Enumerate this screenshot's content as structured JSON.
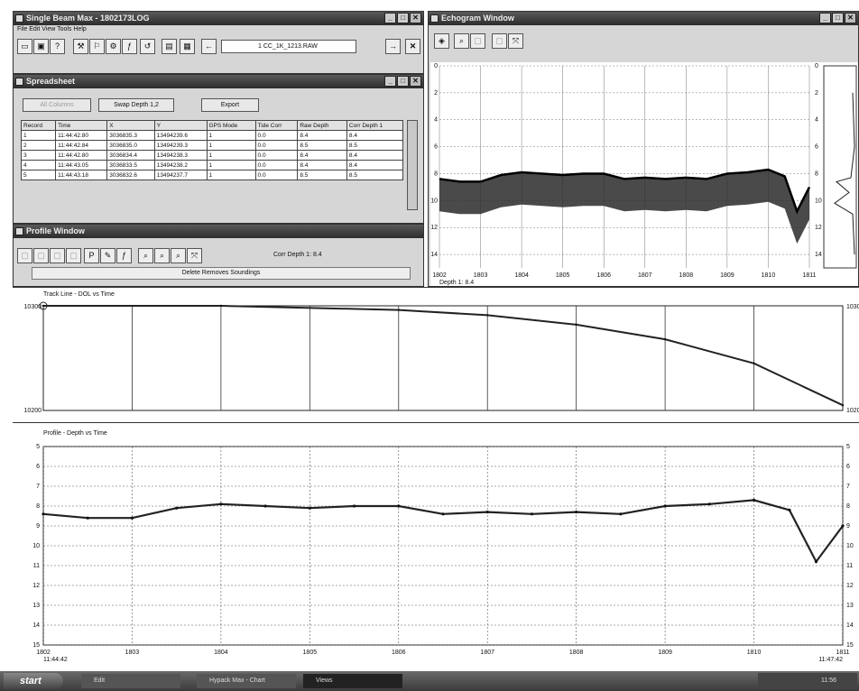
{
  "main_window": {
    "title": "Single Beam Max - 1802173LOG",
    "menu": "File  Edit  View  Tools  Help",
    "file_field": "1  CC_1K_1213.RAW"
  },
  "spreadsheet": {
    "title": "Spreadsheet",
    "all_columns": "All Columns",
    "swap_label": "Swap Depth 1,2",
    "export_label": "Export",
    "columns": [
      "Record",
      "Time",
      "X",
      "Y",
      "GPS Mode",
      "Tide Corr",
      "Raw Depth",
      "Corr Depth 1"
    ],
    "rows": [
      [
        "1",
        "11:44:42.80",
        "3036835.3",
        "13494239.6",
        "1",
        "0.0",
        "8.4",
        "8.4"
      ],
      [
        "2",
        "11:44:42.84",
        "3036835.0",
        "13494239.3",
        "1",
        "0.0",
        "8.5",
        "8.5"
      ],
      [
        "3",
        "11:44:42.80",
        "3036834.4",
        "13494238.3",
        "1",
        "0.0",
        "8.4",
        "8.4"
      ],
      [
        "4",
        "11:44:43.05",
        "3036833.5",
        "13494238.2",
        "1",
        "0.0",
        "8.4",
        "8.4"
      ],
      [
        "5",
        "11:44:43.18",
        "3036832.6",
        "13494237.7",
        "1",
        "0.0",
        "8.5",
        "8.5"
      ]
    ]
  },
  "profile_window": {
    "title": "Profile Window",
    "corr_depth": "Corr Depth 1: 8.4",
    "delete_label": "Delete Removes Soundings"
  },
  "echogram": {
    "title": "Echogram Window",
    "ticks_x": [
      "1802",
      "1803",
      "1804",
      "1805",
      "1806",
      "1807",
      "1808",
      "1809",
      "1810",
      "1811"
    ],
    "ticks_y": [
      "0",
      "2",
      "4",
      "6",
      "8",
      "10",
      "12",
      "14"
    ],
    "depth_label": "Depth 1: 8.4"
  },
  "trackline": {
    "title": "Track Line - DOL vs Time",
    "y_top": "10300",
    "y_bottom": "10200"
  },
  "profile_chart": {
    "title": "Profile - Depth vs Time",
    "ticks_x": [
      "1802",
      "1803",
      "1804",
      "1805",
      "1806",
      "1807",
      "1808",
      "1809",
      "1810",
      "1811"
    ],
    "ticks_y": [
      "5",
      "6",
      "7",
      "8",
      "9",
      "10",
      "11",
      "12",
      "13",
      "14",
      "15"
    ],
    "time_start": "11:44:42",
    "time_end": "11:47:42"
  },
  "taskbar": {
    "start": "start",
    "items": [
      "Edit",
      "Hypack Max - Chart",
      "Views"
    ],
    "clock": "11:56"
  },
  "chart_data": [
    {
      "type": "line",
      "title": "Profile - Depth vs Time",
      "x": [
        1802,
        1802.5,
        1803,
        1803.5,
        1804,
        1804.5,
        1805,
        1805.5,
        1806,
        1806.5,
        1807,
        1807.5,
        1808,
        1808.5,
        1809,
        1809.5,
        1810,
        1810.4,
        1810.7,
        1811
      ],
      "values": [
        8.4,
        8.6,
        8.6,
        8.1,
        7.9,
        8.0,
        8.1,
        8.0,
        8.0,
        8.4,
        8.3,
        8.4,
        8.3,
        8.4,
        8.0,
        7.9,
        7.7,
        8.2,
        10.8,
        9.0
      ],
      "ylim": [
        15,
        5
      ]
    },
    {
      "type": "line",
      "title": "Track Line - DOL vs Time",
      "x": [
        1802,
        1804,
        1806,
        1807,
        1808,
        1809,
        1810,
        1811
      ],
      "values": [
        10300,
        10300,
        10296,
        10291,
        10282,
        10268,
        10245,
        10205
      ],
      "ylim": [
        10200,
        10300
      ]
    }
  ]
}
